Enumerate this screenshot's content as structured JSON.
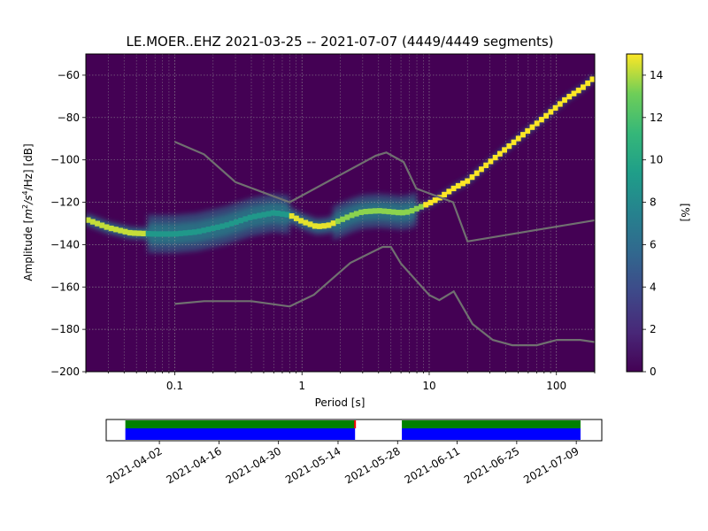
{
  "chart_data": {
    "type": "heatmap",
    "title": "LE.MOER..EHZ   2021-03-25 -- 2021-07-07  (4449/4449 segments)",
    "xlabel": "Period [s]",
    "ylabel_prefix": "Amplitude [",
    "ylabel_unit": "m",
    "ylabel_exp1": "2",
    "ylabel_mid": "/s",
    "ylabel_exp2": "4",
    "ylabel_suffix": "/Hz] [dB]",
    "x_scale": "log",
    "xlim": [
      0.02,
      200
    ],
    "ylim": [
      -200,
      -50
    ],
    "x_ticks": [
      {
        "v": 0.1,
        "label": "0.1"
      },
      {
        "v": 1,
        "label": "1"
      },
      {
        "v": 10,
        "label": "10"
      },
      {
        "v": 100,
        "label": "100"
      }
    ],
    "y_ticks": [
      {
        "v": -60,
        "label": "−60"
      },
      {
        "v": -80,
        "label": "−80"
      },
      {
        "v": -100,
        "label": "−100"
      },
      {
        "v": -120,
        "label": "−120"
      },
      {
        "v": -140,
        "label": "−140"
      },
      {
        "v": -160,
        "label": "−160"
      },
      {
        "v": -180,
        "label": "−180"
      },
      {
        "v": -200,
        "label": "−200"
      }
    ],
    "grid": true,
    "colormap": "viridis",
    "colorbar": {
      "label": "[%]",
      "range": [
        0,
        15
      ],
      "ticks": [
        {
          "v": 0,
          "label": "0"
        },
        {
          "v": 2,
          "label": "2"
        },
        {
          "v": 4,
          "label": "4"
        },
        {
          "v": 6,
          "label": "6"
        },
        {
          "v": 8,
          "label": "8"
        },
        {
          "v": 10,
          "label": "10"
        },
        {
          "v": 12,
          "label": "12"
        },
        {
          "v": 14,
          "label": "14"
        }
      ]
    },
    "mode_curve": [
      [
        0.02,
        -128
      ],
      [
        0.03,
        -132
      ],
      [
        0.045,
        -134.5
      ],
      [
        0.07,
        -135
      ],
      [
        0.1,
        -135
      ],
      [
        0.15,
        -134
      ],
      [
        0.25,
        -131
      ],
      [
        0.4,
        -127
      ],
      [
        0.6,
        -125
      ],
      [
        0.8,
        -126
      ],
      [
        1,
        -129
      ],
      [
        1.3,
        -131.5
      ],
      [
        1.6,
        -131
      ],
      [
        2,
        -128.5
      ],
      [
        2.5,
        -126
      ],
      [
        3,
        -124.5
      ],
      [
        4,
        -124
      ],
      [
        5,
        -124.5
      ],
      [
        6,
        -125
      ],
      [
        7,
        -124.5
      ],
      [
        8,
        -123
      ],
      [
        10,
        -120.5
      ],
      [
        12,
        -118
      ],
      [
        16,
        -113
      ],
      [
        20,
        -110
      ],
      [
        30,
        -101
      ],
      [
        50,
        -90
      ],
      [
        80,
        -80
      ],
      [
        120,
        -71
      ],
      [
        160,
        -66
      ],
      [
        200,
        -61
      ]
    ],
    "nhnm": [
      [
        0.1,
        -91.5
      ],
      [
        0.17,
        -97.4
      ],
      [
        0.3,
        -110.5
      ],
      [
        0.8,
        -120
      ],
      [
        3.8,
        -98
      ],
      [
        4.6,
        -96.5
      ],
      [
        6.3,
        -101
      ],
      [
        7.9,
        -113.5
      ],
      [
        15.4,
        -120
      ],
      [
        20,
        -138.5
      ],
      [
        200,
        -128.5
      ]
    ],
    "nlnm": [
      [
        0.1,
        -168
      ],
      [
        0.17,
        -166.7
      ],
      [
        0.4,
        -166.7
      ],
      [
        0.8,
        -169.2
      ],
      [
        1.24,
        -163.7
      ],
      [
        2.4,
        -148.6
      ],
      [
        4.3,
        -141.1
      ],
      [
        5,
        -141.1
      ],
      [
        6,
        -149
      ],
      [
        10,
        -163.8
      ],
      [
        12,
        -166.2
      ],
      [
        15.6,
        -162.1
      ],
      [
        21.9,
        -177.5
      ],
      [
        31.6,
        -185
      ],
      [
        45,
        -187.5
      ],
      [
        70,
        -187.5
      ],
      [
        101,
        -185
      ],
      [
        154,
        -185
      ],
      [
        200,
        -186
      ]
    ],
    "timeline": {
      "date_range": [
        "2021-03-25",
        "2021-07-07"
      ],
      "tick_dates": [
        {
          "date": "2021-04-02",
          "label": "2021-04-02"
        },
        {
          "date": "2021-04-16",
          "label": "2021-04-16"
        },
        {
          "date": "2021-04-30",
          "label": "2021-04-30"
        },
        {
          "date": "2021-05-14",
          "label": "2021-05-14"
        },
        {
          "date": "2021-05-28",
          "label": "2021-05-28"
        },
        {
          "date": "2021-06-11",
          "label": "2021-06-11"
        },
        {
          "date": "2021-06-25",
          "label": "2021-06-25"
        },
        {
          "date": "2021-07-09",
          "label": "2021-07-09"
        }
      ],
      "coverage_segments": [
        {
          "start": "2021-03-25",
          "end": "2021-05-18"
        },
        {
          "start": "2021-05-29",
          "end": "2021-07-10"
        }
      ],
      "colors": {
        "data": "#0000ff",
        "used": "#008000",
        "gap": "#ff0000"
      }
    }
  }
}
